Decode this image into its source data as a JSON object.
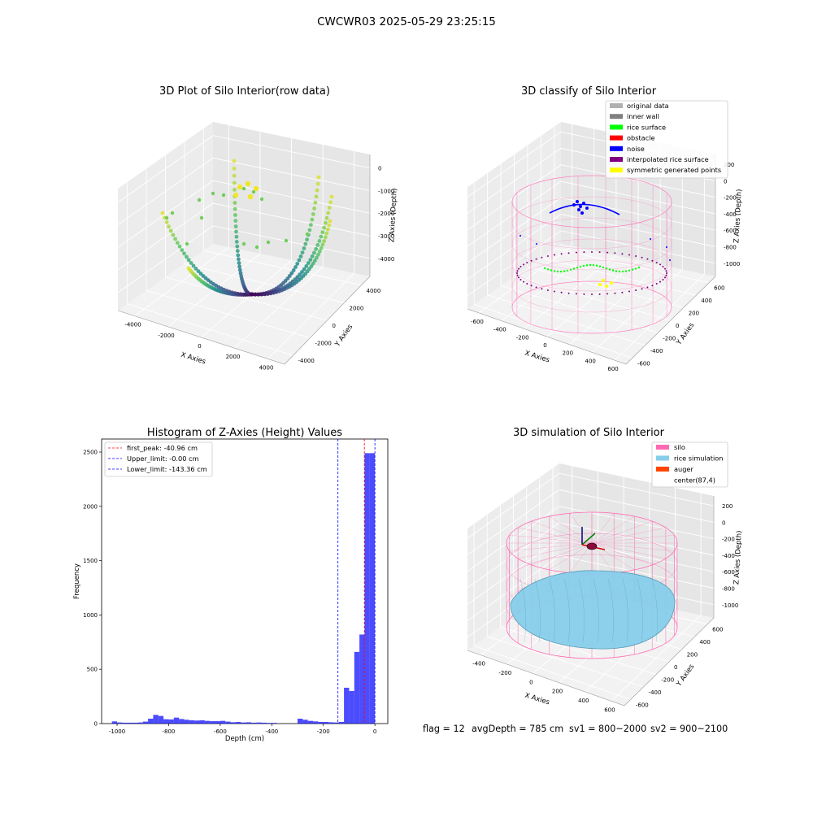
{
  "figure": {
    "suptitle": "CWCWR03 2025-05-29 23:25:15",
    "status": {
      "flag": "flag = 12",
      "avg_depth": "avgDepth = 785 cm",
      "sv1": "sv1 = 800~2000",
      "sv2": "sv2 = 900~2100"
    }
  },
  "colors": {
    "silo": "#ff69b4",
    "rice_simulation": "#87ceeb",
    "auger": "#ff4500",
    "histogram": "#0000ff",
    "noise": "#0000ff",
    "rice_surface": "#00ff00",
    "interpolated": "#800080",
    "symmetric": "#ffff00",
    "original": "#b0b0b0",
    "inner_wall": "#808080",
    "obstacle": "#ff0000"
  },
  "icons": [
    "legend-swatch",
    "axis-arrow-icon",
    "auger-icon"
  ],
  "chart_data": [
    {
      "type": "scatter",
      "subtype": "3d",
      "title": "3D Plot of Silo Interior(row data)",
      "xlabel": "X Axies",
      "ylabel": "Y Axies",
      "zlabel": "Z Axies (Depth)",
      "xlim": [
        -4500,
        4500
      ],
      "ylim": [
        -4500,
        4500
      ],
      "zlim": [
        -4500,
        500
      ],
      "x_ticks": [
        "-4000",
        "-2000",
        "0",
        "2000",
        "4000"
      ],
      "y_ticks": [
        "-4000",
        "-2000",
        "0",
        "2000",
        "4000"
      ],
      "z_ticks": [
        "0",
        "-1000",
        "-2000",
        "-3000",
        "-4000"
      ],
      "colormap": "viridis",
      "grid": true
    },
    {
      "type": "scatter",
      "subtype": "3d",
      "title": "3D classify of Silo Interior",
      "xlabel": "X Axies",
      "ylabel": "Y Axies",
      "zlabel": "Z Axies (Depth)",
      "xlim": [
        -650,
        700
      ],
      "ylim": [
        -650,
        700
      ],
      "zlim": [
        -1100,
        250
      ],
      "x_ticks": [
        "-600",
        "-400",
        "-200",
        "0",
        "200",
        "400",
        "600"
      ],
      "y_ticks": [
        "-600",
        "-400",
        "-200",
        "0",
        "200",
        "400",
        "600"
      ],
      "z_ticks": [
        "200",
        "0",
        "-200",
        "-400",
        "-600",
        "-800",
        "-1000"
      ],
      "legend_position": "top-right",
      "legend": [
        {
          "label": "original data",
          "color": "#b0b0b0"
        },
        {
          "label": "inner wall",
          "color": "#808080"
        },
        {
          "label": "rice surface",
          "color": "#00ff00"
        },
        {
          "label": "obstacle",
          "color": "#ff0000"
        },
        {
          "label": "noise",
          "color": "#0000ff"
        },
        {
          "label": "interpolated rice surface",
          "color": "#800080"
        },
        {
          "label": "symmetric generated points",
          "color": "#ffff00"
        }
      ],
      "grid": true
    },
    {
      "type": "bar",
      "subtype": "histogram",
      "title": "Histogram of Z-Axies (Height) Values",
      "xlabel": "Depth (cm)",
      "ylabel": "Frequency",
      "xlim": [
        -1060,
        50
      ],
      "ylim": [
        0,
        2620
      ],
      "x_ticks": [
        -1000,
        -800,
        -600,
        -400,
        -200,
        0
      ],
      "y_ticks": [
        0,
        500,
        1000,
        1500,
        2000,
        2500
      ],
      "bin_width": 20,
      "bins": [
        [
          -1020,
          20
        ],
        [
          -1000,
          10
        ],
        [
          -980,
          8
        ],
        [
          -960,
          8
        ],
        [
          -940,
          8
        ],
        [
          -920,
          10
        ],
        [
          -900,
          18
        ],
        [
          -880,
          45
        ],
        [
          -860,
          80
        ],
        [
          -840,
          70
        ],
        [
          -820,
          40
        ],
        [
          -800,
          38
        ],
        [
          -780,
          55
        ],
        [
          -760,
          42
        ],
        [
          -740,
          35
        ],
        [
          -720,
          30
        ],
        [
          -700,
          28
        ],
        [
          -680,
          30
        ],
        [
          -660,
          25
        ],
        [
          -640,
          22
        ],
        [
          -620,
          22
        ],
        [
          -600,
          25
        ],
        [
          -580,
          18
        ],
        [
          -560,
          12
        ],
        [
          -540,
          15
        ],
        [
          -520,
          10
        ],
        [
          -500,
          12
        ],
        [
          -480,
          8
        ],
        [
          -460,
          10
        ],
        [
          -440,
          8
        ],
        [
          -420,
          6
        ],
        [
          -400,
          6
        ],
        [
          -300,
          45
        ],
        [
          -280,
          35
        ],
        [
          -260,
          25
        ],
        [
          -240,
          20
        ],
        [
          -220,
          15
        ],
        [
          -200,
          15
        ],
        [
          -180,
          12
        ],
        [
          -160,
          10
        ],
        [
          -140,
          15
        ],
        [
          -120,
          330
        ],
        [
          -100,
          300
        ],
        [
          -80,
          660
        ],
        [
          -60,
          820
        ],
        [
          -40,
          2490
        ],
        [
          -20,
          2490
        ]
      ],
      "vlines": [
        {
          "label": "first_peak: -40.96 cm",
          "value": -40.96,
          "color": "#ff0000"
        },
        {
          "label": "Upper_limit: -0.00 cm",
          "value": -0.0,
          "color": "#0000ff"
        },
        {
          "label": "Lower_limit: -143.36 cm",
          "value": -143.36,
          "color": "#0000ff"
        }
      ],
      "legend_position": "top-left",
      "grid": false
    },
    {
      "type": "surface",
      "subtype": "3d",
      "title": "3D simulation of Silo Interior",
      "xlabel": "X Axies",
      "ylabel": "Y Axies",
      "zlabel": "Z Axies (Depth)",
      "xlim": [
        -550,
        750
      ],
      "ylim": [
        -650,
        700
      ],
      "zlim": [
        -1100,
        300
      ],
      "x_ticks": [
        "-400",
        "-200",
        "0",
        "200",
        "400",
        "600"
      ],
      "y_ticks": [
        "-600",
        "-400",
        "-200",
        "0",
        "200",
        "400",
        "600"
      ],
      "z_ticks": [
        "200",
        "0",
        "-200",
        "-400",
        "-600",
        "-800",
        "-1000"
      ],
      "legend_position": "top-right",
      "legend": [
        {
          "label": "silo",
          "color": "#ff69b4"
        },
        {
          "label": "rice simulation",
          "color": "#87ceeb"
        },
        {
          "label": "auger",
          "color": "#ff4500"
        },
        {
          "label": "center(87,4)",
          "color": "#ffffff"
        }
      ],
      "grid": true
    }
  ]
}
